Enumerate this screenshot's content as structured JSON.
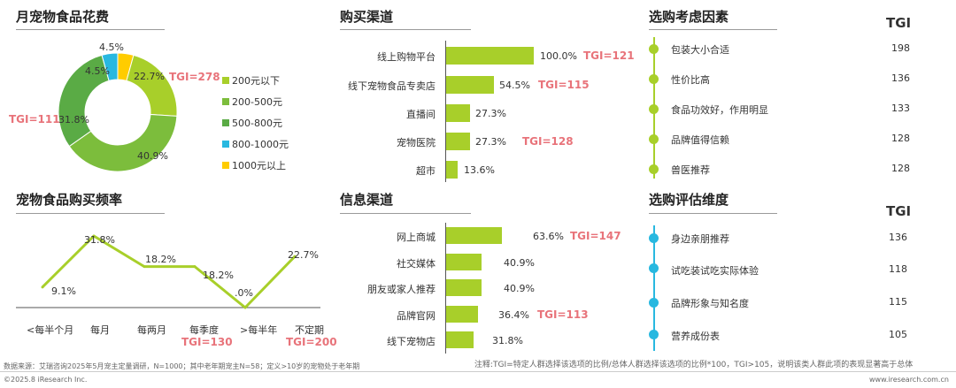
{
  "colors": {
    "donut": [
      "#a8cf2a",
      "#7cbd3c",
      "#5aab45",
      "#28b8e0",
      "#ffcc00"
    ],
    "bar": "#a8cf2a",
    "line": "#a8cf2a",
    "tgi": "#e8737a",
    "axis": "#555555",
    "dot_green": "#a8cf2a",
    "dot_blue": "#28b8e0"
  },
  "sections": {
    "spend": "月宠物食品花费",
    "freq": "宠物食品购买频率",
    "channel": "购买渠道",
    "info": "信息渠道",
    "factors": "选购考虑因素",
    "dimensions": "选购评估维度"
  },
  "tgi_header": "TGI",
  "chart_data": [
    {
      "type": "pie",
      "donut": true,
      "title": "月宠物食品花费",
      "categories": [
        "200元以下",
        "200-500元",
        "500-800元",
        "800-1000元",
        "1000元以上"
      ],
      "values": [
        22.7,
        40.9,
        31.8,
        4.5,
        4.5
      ],
      "value_labels": [
        "22.7%",
        "40.9%",
        "31.8%",
        "4.5%",
        "4.5%"
      ],
      "legend": "right",
      "tgi_labels": [
        "TGI=278",
        "TGI=111"
      ]
    },
    {
      "type": "line",
      "title": "宠物食品购买频率",
      "categories": [
        "<每半个月",
        "每月",
        "每两月",
        "每季度",
        ">每半年",
        "不定期"
      ],
      "values": [
        9.1,
        31.8,
        18.2,
        18.2,
        0,
        22.7
      ],
      "value_labels": [
        "9.1%",
        "31.8%",
        "18.2%",
        "18.2%",
        ".0%",
        "22.7%"
      ],
      "ylim": [
        0,
        40
      ],
      "tgi": [
        "",
        "",
        "",
        "TGI=130",
        "",
        "TGI=200"
      ]
    },
    {
      "type": "bar",
      "orientation": "horizontal",
      "title": "购买渠道",
      "categories": [
        "线上购物平台",
        "线下宠物食品专卖店",
        "直播间",
        "宠物医院",
        "超市"
      ],
      "values": [
        100.0,
        54.5,
        27.3,
        27.3,
        13.6
      ],
      "value_labels": [
        "100.0%",
        "54.5%",
        "27.3%",
        "27.3%",
        "13.6%"
      ],
      "xlim": [
        0,
        100
      ],
      "tgi": [
        "TGI=121",
        "TGI=115",
        "",
        "TGI=128",
        ""
      ]
    },
    {
      "type": "bar",
      "orientation": "horizontal",
      "title": "信息渠道",
      "categories": [
        "网上商城",
        "社交媒体",
        "朋友或家人推荐",
        "品牌官网",
        "线下宠物店"
      ],
      "values": [
        63.6,
        40.9,
        40.9,
        36.4,
        31.8
      ],
      "value_labels": [
        "63.6%",
        "40.9%",
        "40.9%",
        "36.4%",
        "31.8%"
      ],
      "xlim": [
        0,
        100
      ],
      "tgi": [
        "TGI=147",
        "",
        "",
        "TGI=113",
        ""
      ]
    }
  ],
  "factors": [
    {
      "label": "包装大小合适",
      "tgi": "198"
    },
    {
      "label": "性价比高",
      "tgi": "136"
    },
    {
      "label": "食品功效好，作用明显",
      "tgi": "133"
    },
    {
      "label": "品牌值得信赖",
      "tgi": "128"
    },
    {
      "label": "兽医推荐",
      "tgi": "128"
    }
  ],
  "dimensions": [
    {
      "label": "身边亲朋推荐",
      "tgi": "136"
    },
    {
      "label": "试吃装试吃实际体验",
      "tgi": "118"
    },
    {
      "label": "品牌形象与知名度",
      "tgi": "115"
    },
    {
      "label": "营养成份表",
      "tgi": "105"
    }
  ],
  "footer": {
    "source": "数据来源：艾瑞咨询2025年5月宠主定量调研，N=1000；其中老年期宠主N=58；定义>10岁的宠物处于老年期",
    "note": "注释:TGI=特定人群选择该选项的比例/总体人群选择该选项的比例*100，TGI>105，说明该类人群此项的表现显著高于总体",
    "copyright": "©2025.8 iResearch Inc.",
    "website": "www.iresearch.com.cn"
  }
}
